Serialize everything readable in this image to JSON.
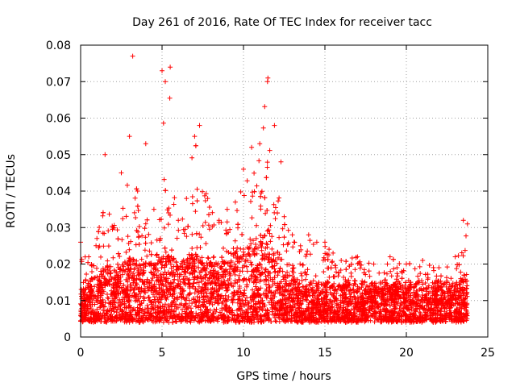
{
  "chart_data": {
    "type": "scatter",
    "title": "Day 261 of 2016, Rate Of TEC Index for receiver tacc",
    "xlabel": "GPS time / hours",
    "ylabel": "ROTI / TECUs",
    "xlim": [
      0,
      25
    ],
    "ylim": [
      0,
      0.08
    ],
    "x_ticks": [
      0,
      5,
      10,
      15,
      20,
      25
    ],
    "x_tick_labels": [
      "0",
      "5",
      "10",
      "15",
      "20",
      "25"
    ],
    "y_ticks": [
      0,
      0.01,
      0.02,
      0.03,
      0.04,
      0.05,
      0.06,
      0.07,
      0.08
    ],
    "y_tick_labels": [
      "0",
      "0.01",
      "0.02",
      "0.03",
      "0.04",
      "0.05",
      "0.06",
      "0.07",
      "0.08"
    ],
    "grid": true,
    "marker": "+",
    "series": [
      {
        "name": "ROTI",
        "color": "#ff0000",
        "x_range": [
          0,
          23.75
        ],
        "envelope_x": [
          0,
          0.5,
          1,
          1.5,
          2,
          2.5,
          3,
          3.2,
          3.5,
          4,
          4.5,
          5,
          5.2,
          5.5,
          6,
          6.5,
          7,
          7.3,
          7.8,
          8.5,
          9,
          9.5,
          10,
          10.5,
          11,
          11.5,
          11.9,
          12.3,
          12.5,
          13,
          13.5,
          14,
          14.5,
          15,
          15.5,
          16,
          17,
          18,
          19,
          20,
          21,
          22,
          23,
          23.5,
          23.75
        ],
        "envelope_upper": [
          0.026,
          0.022,
          0.027,
          0.05,
          0.03,
          0.045,
          0.055,
          0.077,
          0.04,
          0.053,
          0.035,
          0.073,
          0.07,
          0.074,
          0.032,
          0.038,
          0.055,
          0.058,
          0.038,
          0.032,
          0.035,
          0.037,
          0.046,
          0.052,
          0.053,
          0.071,
          0.058,
          0.048,
          0.033,
          0.028,
          0.025,
          0.028,
          0.026,
          0.026,
          0.023,
          0.021,
          0.022,
          0.02,
          0.022,
          0.02,
          0.021,
          0.019,
          0.022,
          0.032,
          0.031
        ],
        "baseline_median": [
          0.009,
          0.009,
          0.01,
          0.012,
          0.011,
          0.012,
          0.013,
          0.014,
          0.012,
          0.013,
          0.012,
          0.014,
          0.015,
          0.014,
          0.012,
          0.013,
          0.014,
          0.014,
          0.013,
          0.013,
          0.013,
          0.014,
          0.015,
          0.016,
          0.017,
          0.018,
          0.016,
          0.013,
          0.011,
          0.01,
          0.009,
          0.009,
          0.009,
          0.009,
          0.009,
          0.009,
          0.009,
          0.009,
          0.009,
          0.009,
          0.009,
          0.009,
          0.009,
          0.01,
          0.011
        ],
        "y_min": 0.004
      }
    ]
  }
}
